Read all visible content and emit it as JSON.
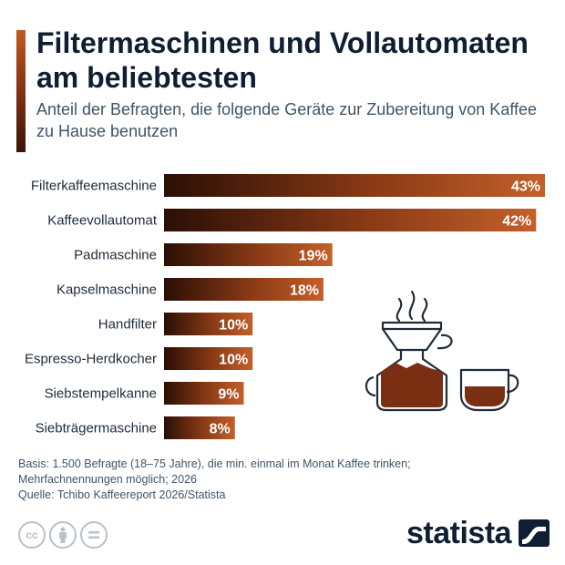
{
  "header": {
    "title": "Filtermaschinen und Vollautomaten am beliebtesten",
    "subtitle": "Anteil der Befragten, die folgende Geräte zur Zubereitung von Kaffee zu Hause benutzen"
  },
  "chart_data": {
    "type": "bar",
    "orientation": "horizontal",
    "categories": [
      "Filterkaffeemaschine",
      "Kaffeevollautomat",
      "Padmaschine",
      "Kapselmaschine",
      "Handfilter",
      "Espresso-Herdkocher",
      "Siebstempelkanne",
      "Siebträgermaschine"
    ],
    "values": [
      43,
      42,
      19,
      18,
      10,
      10,
      9,
      8
    ],
    "value_labels": [
      "43%",
      "42%",
      "19%",
      "18%",
      "10%",
      "10%",
      "9%",
      "8%"
    ],
    "unit": "%",
    "xlim": [
      0,
      43
    ],
    "grid": false,
    "legend": "none",
    "bar_gradient": [
      "#2a0f05",
      "#8a3a16",
      "#c4602a"
    ]
  },
  "footer": {
    "basis": "Basis: 1.500 Befragte (18–75 Jahre), die min. einmal im Monat Kaffee trinken; Mehrfachnennungen möglich; 2026",
    "source": "Quelle: Tchibo Kaffeereport 2026/Statista",
    "brand": "statista",
    "license_icons": [
      "cc-icon",
      "by-icon",
      "nd-icon"
    ]
  },
  "illustration": {
    "icons": [
      "coffee-pour-over-icon",
      "coffee-cup-icon"
    ],
    "stroke_color": "#1f2b38",
    "fill_color": "#7a2e12"
  }
}
